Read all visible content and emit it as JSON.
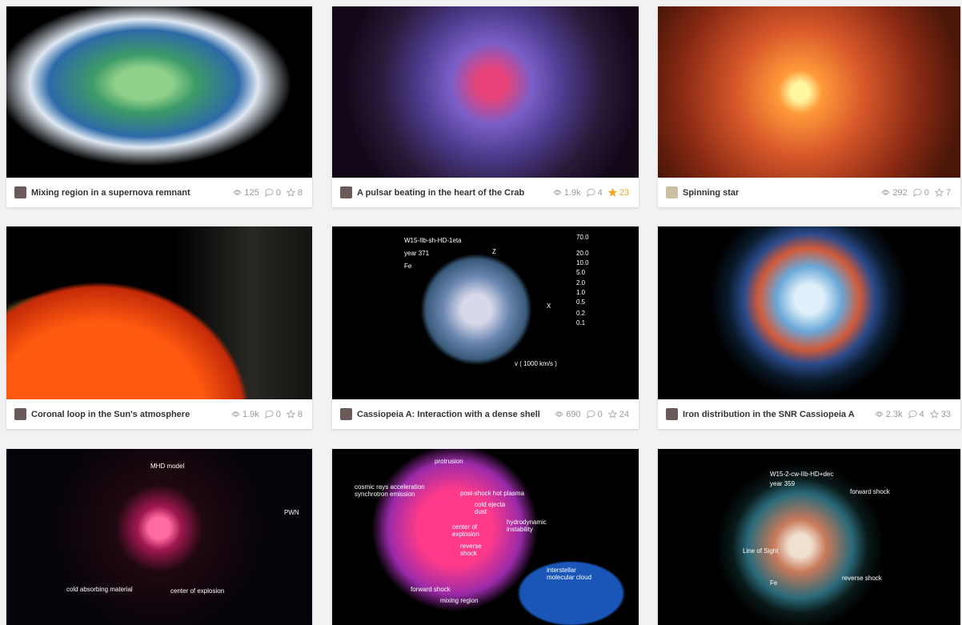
{
  "cards": [
    {
      "title": "Mixing region in a supernova remnant",
      "views": "125",
      "comments": "0",
      "likes": "8",
      "liked": false,
      "overlay": []
    },
    {
      "title": "A pulsar beating in the heart of the Crab",
      "views": "1.9k",
      "comments": "4",
      "likes": "23",
      "liked": true,
      "overlay": []
    },
    {
      "title": "Spinning star",
      "views": "292",
      "comments": "0",
      "likes": "7",
      "liked": false,
      "overlay": []
    },
    {
      "title": "Coronal loop in the Sun's atmosphere",
      "views": "1.9k",
      "comments": "0",
      "likes": "8",
      "liked": false,
      "overlay": []
    },
    {
      "title": "Cassiopeia A: Interaction with a dense shell",
      "views": "690",
      "comments": "0",
      "likes": "24",
      "liked": false,
      "overlay": [
        "W15-IIb-sh-HD-1eta",
        "year 371",
        "Fe",
        "Z",
        "X",
        "70.0",
        "20.0",
        "10.0",
        "5.0",
        "2.0",
        "1.0",
        "0.5",
        "0.2",
        "0.1",
        "v ( 1000 km/s )"
      ]
    },
    {
      "title": "Iron distribution in the SNR Cassiopeia A",
      "views": "2.3k",
      "comments": "4",
      "likes": "33",
      "liked": false,
      "overlay": []
    },
    {
      "title": "",
      "views": "",
      "comments": "",
      "likes": "",
      "liked": false,
      "overlay": [
        "MHD model",
        "PWN",
        "cold absorbing material",
        "center of explosion"
      ]
    },
    {
      "title": "",
      "views": "",
      "comments": "",
      "likes": "",
      "liked": false,
      "overlay": [
        "protrusion",
        "cosmic rays acceleration synchrotron emission",
        "post-shock hot plasma",
        "cold ejecta dust",
        "hydrodynamic instability",
        "center of explosion",
        "reverse shock",
        "forward shock",
        "mixing region",
        "interstellar molecular cloud"
      ]
    },
    {
      "title": "",
      "views": "",
      "comments": "",
      "likes": "",
      "liked": false,
      "overlay": [
        "W15-2-cw-IIb-HD+dec",
        "year 359",
        "forward shock",
        "Line of Sight",
        "reverse shock",
        "Fe"
      ]
    }
  ]
}
